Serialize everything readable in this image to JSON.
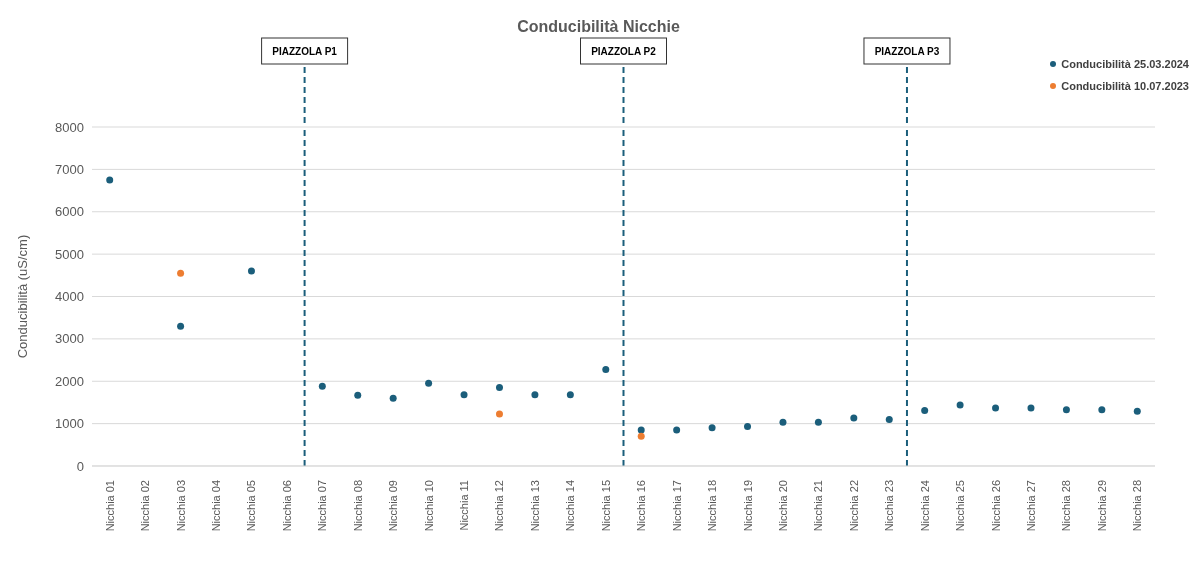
{
  "chart_data": {
    "type": "scatter",
    "title": "Conducibilità Nicchie",
    "ylabel": "Conducibilità (uS/cm)",
    "categories": [
      "Nicchia 01",
      "Nicchia 02",
      "Nicchia 03",
      "Nicchia 04",
      "Nicchia 05",
      "Nicchia 06",
      "Nicchia 07",
      "Nicchia 08",
      "Nicchia 09",
      "Nicchia 10",
      "Nicchia 11",
      "Nicchia 12",
      "Nicchia 13",
      "Nicchia 14",
      "Nicchia 15",
      "Nicchia 16",
      "Nicchia 17",
      "Nicchia 18",
      "Nicchia 19",
      "Nicchia 20",
      "Nicchia 21",
      "Nicchia 22",
      "Nicchia 23",
      "Nicchia 24",
      "Nicchia 25",
      "Nicchia 26",
      "Nicchia 27",
      "Nicchia 28",
      "Nicchia 29",
      "Nicchia 28"
    ],
    "series": [
      {
        "name": "Conducibilità 25.03.2024",
        "color": "#1b5e7b",
        "values": [
          6750,
          null,
          3300,
          null,
          4600,
          null,
          1880,
          1670,
          1600,
          1950,
          1680,
          1850,
          1680,
          1680,
          2280,
          850,
          850,
          900,
          930,
          1030,
          1030,
          1130,
          1100,
          1310,
          1440,
          1370,
          1370,
          1330,
          1330,
          1290
        ]
      },
      {
        "name": "Conducibilità 10.07.2023",
        "color": "#ed7d31",
        "values": [
          null,
          null,
          4550,
          null,
          null,
          null,
          null,
          null,
          null,
          null,
          null,
          1230,
          null,
          null,
          null,
          700,
          null,
          null,
          null,
          null,
          null,
          null,
          null,
          null,
          null,
          null,
          null,
          null,
          null,
          null
        ]
      }
    ],
    "ylim": [
      0,
      8000
    ],
    "yticks": [
      0,
      1000,
      2000,
      3000,
      4000,
      5000,
      6000,
      7000,
      8000
    ],
    "grid": "y",
    "legend": "top right",
    "marker": "circle",
    "ref_lines": [
      {
        "axis": "x",
        "value": "Nicchia 06",
        "label": "PIAZZOLA P1",
        "color": "#1b5e7b",
        "line_style": "dashed"
      },
      {
        "axis": "x",
        "value": "Nicchia 15",
        "label": "PIAZZOLA P2",
        "color": "#1b5e7b",
        "line_style": "dashed"
      },
      {
        "axis": "x",
        "value": "Nicchia 23",
        "label": "PIAZZOLA P3",
        "color": "#1b5e7b",
        "line_style": "dashed"
      }
    ]
  }
}
